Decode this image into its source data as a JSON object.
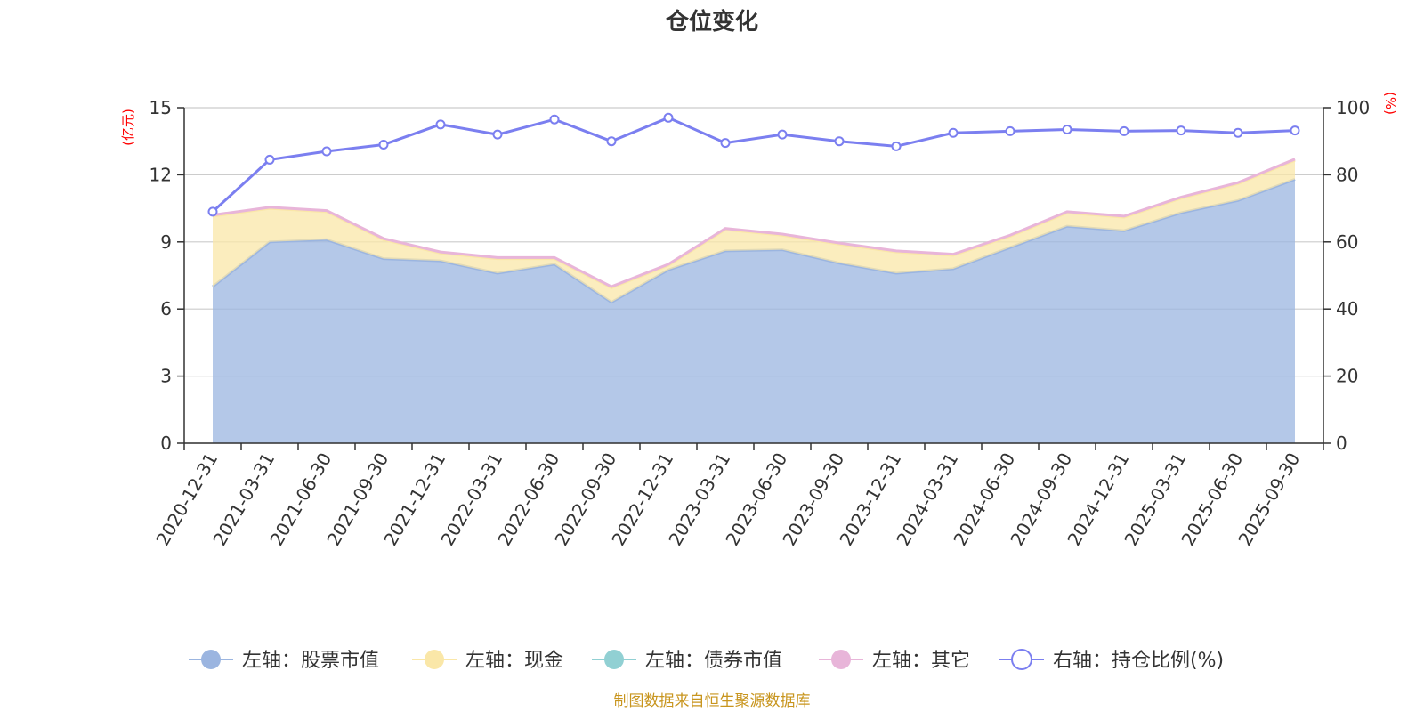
{
  "chart_data": {
    "type": "area",
    "title": "仓位变化",
    "left_axis": {
      "unit": "(亿元)",
      "ylim": [
        0,
        15
      ],
      "ticks": [
        "0",
        "3",
        "6",
        "9",
        "12",
        "15"
      ]
    },
    "right_axis": {
      "unit": "(%)",
      "ylim": [
        0,
        100
      ],
      "ticks": [
        "0",
        "20",
        "40",
        "60",
        "80",
        "100"
      ]
    },
    "categories": [
      "2020-12-31",
      "2021-03-31",
      "2021-06-30",
      "2021-09-30",
      "2021-12-31",
      "2022-03-31",
      "2022-06-30",
      "2022-09-30",
      "2022-12-31",
      "2023-03-31",
      "2023-06-30",
      "2023-09-30",
      "2023-12-31",
      "2024-03-31",
      "2024-06-30",
      "2024-09-30",
      "2024-12-31",
      "2025-03-31",
      "2025-06-30",
      "2025-09-30"
    ],
    "series": [
      {
        "name": "左轴：股票市值",
        "axis": "left",
        "kind": "stacked-area",
        "color": "#9bb5e0",
        "values": [
          7.0,
          9.0,
          9.1,
          8.25,
          8.15,
          7.6,
          8.0,
          6.3,
          7.75,
          8.6,
          8.65,
          8.05,
          7.6,
          7.8,
          8.75,
          9.7,
          9.5,
          10.3,
          10.85,
          11.8
        ]
      },
      {
        "name": "左轴：现金",
        "axis": "left",
        "kind": "stacked-area",
        "color": "#fae7a8",
        "values": [
          3.15,
          1.5,
          1.25,
          0.85,
          0.35,
          0.65,
          0.25,
          0.65,
          0.2,
          0.95,
          0.65,
          0.85,
          0.95,
          0.6,
          0.5,
          0.6,
          0.6,
          0.65,
          0.75,
          0.85
        ]
      },
      {
        "name": "左轴：债券市值",
        "axis": "left",
        "kind": "stacked-area",
        "color": "#91d0d3",
        "values": [
          0,
          0,
          0,
          0,
          0,
          0,
          0,
          0,
          0,
          0,
          0,
          0,
          0,
          0,
          0,
          0,
          0,
          0,
          0,
          0
        ]
      },
      {
        "name": "左轴：其它",
        "axis": "left",
        "kind": "stacked-area",
        "color": "#e8b5d9",
        "values": [
          0.05,
          0.05,
          0.05,
          0.05,
          0.05,
          0.05,
          0.05,
          0.05,
          0.05,
          0.05,
          0.05,
          0.05,
          0.05,
          0.05,
          0.05,
          0.05,
          0.05,
          0.05,
          0.05,
          0.05
        ]
      },
      {
        "name": "右轴：持仓比例(%)",
        "axis": "right",
        "kind": "line",
        "color": "#7b7ff0",
        "values": [
          69,
          84.5,
          87,
          89,
          95,
          92,
          96.5,
          90,
          97,
          89.5,
          92,
          90,
          88.5,
          92.5,
          93,
          93.5,
          93,
          93.2,
          92.5,
          93.2
        ]
      }
    ],
    "grid": true,
    "legend_position": "bottom"
  },
  "footer": {
    "source": "制图数据来自恒生聚源数据库"
  }
}
